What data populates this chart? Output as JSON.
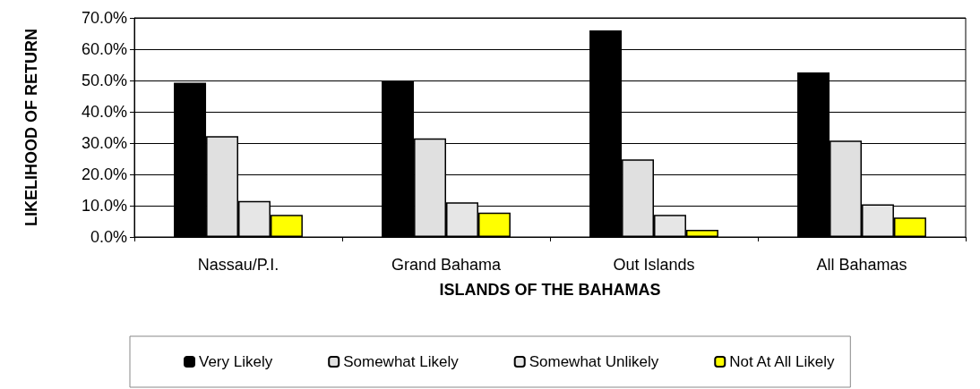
{
  "chart_data": {
    "type": "bar",
    "xlabel": "ISLANDS OF THE BAHAMAS",
    "ylabel": "LIKELIHOOD OF RETURN",
    "categories": [
      "Nassau/P.I.",
      "Grand Bahama",
      "Out Islands",
      "All Bahamas"
    ],
    "series": [
      {
        "name": "Very Likely",
        "color": "#000000",
        "values": [
          49.3,
          50.0,
          66.0,
          52.6
        ]
      },
      {
        "name": "Somewhat Likely",
        "color": "#e0e0e0",
        "values": [
          32.2,
          31.5,
          24.8,
          30.8
        ]
      },
      {
        "name": "Somewhat Unlikely",
        "color": "#e6e6e6",
        "values": [
          11.5,
          11.1,
          7.1,
          10.4
        ]
      },
      {
        "name": "Not At All Likely",
        "color": "#ffff00",
        "values": [
          7.1,
          7.8,
          2.3,
          6.2
        ]
      }
    ],
    "ylim": [
      0,
      70
    ],
    "yticks": [
      {
        "value": 0,
        "label": "0.0%"
      },
      {
        "value": 10,
        "label": "10.0%"
      },
      {
        "value": 20,
        "label": "20.0%"
      },
      {
        "value": 30,
        "label": "30.0%"
      },
      {
        "value": 40,
        "label": "40.0%"
      },
      {
        "value": 50,
        "label": "50.0%"
      },
      {
        "value": 60,
        "label": "60.0%"
      },
      {
        "value": 70,
        "label": "70.0%"
      }
    ],
    "grid": "y",
    "legend": "bottom"
  }
}
